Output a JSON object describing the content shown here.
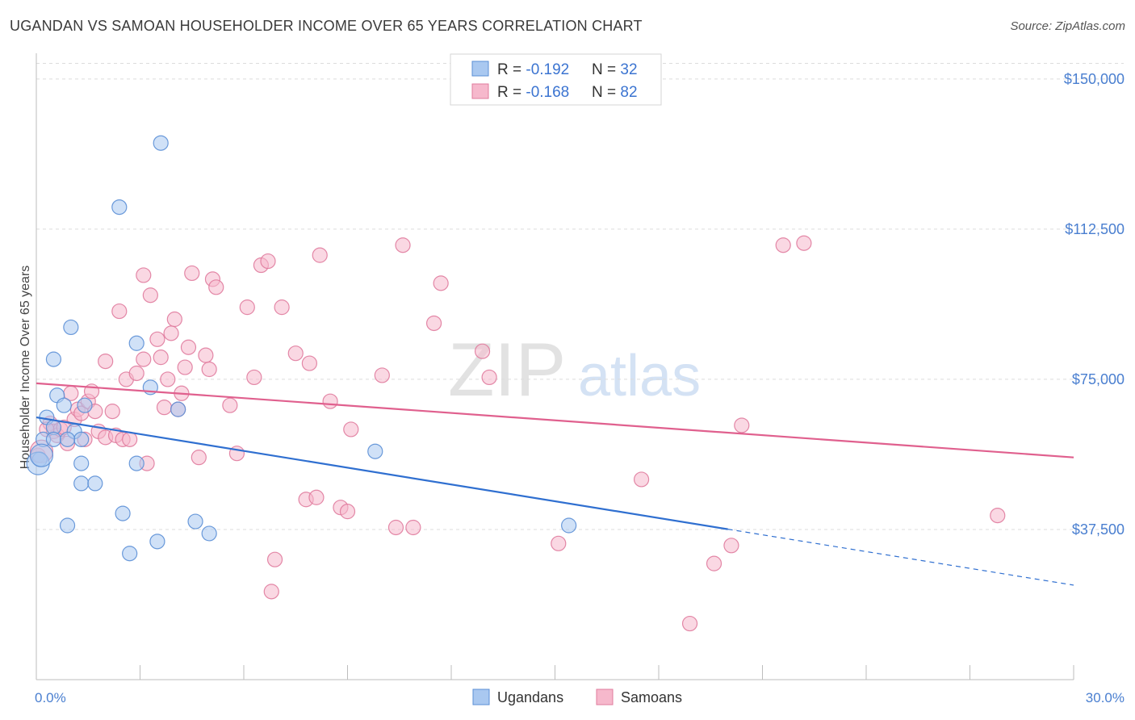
{
  "title": "UGANDAN VS SAMOAN HOUSEHOLDER INCOME OVER 65 YEARS CORRELATION CHART",
  "source": "Source: ZipAtlas.com",
  "watermark": {
    "zip": "ZIP",
    "atlas": "atlas"
  },
  "colors": {
    "ugandan_fill": "#a9c8f0",
    "ugandan_stroke": "#5b8fd6",
    "ugandan_line": "#2f6fd0",
    "samoan_fill": "#f6b8cc",
    "samoan_stroke": "#e07b9d",
    "samoan_line": "#e0608e",
    "axis_label": "#4a7fd0",
    "grid": "#dcdcdc"
  },
  "legend": [
    {
      "r_label": "R = ",
      "r_value": "-0.192",
      "n_label": "N = ",
      "n_value": "32"
    },
    {
      "r_label": "R = ",
      "r_value": "-0.168",
      "n_label": "N = ",
      "n_value": "82"
    }
  ],
  "chart_data": {
    "type": "scatter",
    "title": "UGANDAN VS SAMOAN HOUSEHOLDER INCOME OVER 65 YEARS CORRELATION CHART",
    "xlabel": "",
    "ylabel": "Householder Income Over 65 years",
    "xlim": [
      0,
      30
    ],
    "ylim": [
      0,
      154000
    ],
    "x_tick_labels": [
      "0.0%",
      "30.0%"
    ],
    "y_ticks": [
      37500,
      75000,
      112500,
      150000
    ],
    "y_tick_labels": [
      "$37,500",
      "$75,000",
      "$112,500",
      "$150,000"
    ],
    "legend_position": "top-center",
    "bottom_legend": [
      "Ugandans",
      "Samoans"
    ],
    "series": [
      {
        "name": "Ugandans",
        "r": -0.192,
        "n": 32,
        "trend": {
          "x0": 0,
          "y0": 65500,
          "x_solid_end": 20,
          "x1": 30,
          "y1": 23600
        },
        "points": [
          [
            3.6,
            134000
          ],
          [
            2.4,
            118000
          ],
          [
            1.0,
            88000
          ],
          [
            0.5,
            80000
          ],
          [
            2.9,
            84000
          ],
          [
            0.6,
            71000
          ],
          [
            3.3,
            73000
          ],
          [
            0.8,
            68500
          ],
          [
            1.4,
            68500
          ],
          [
            4.1,
            67500
          ],
          [
            0.3,
            65500
          ],
          [
            0.5,
            63000
          ],
          [
            1.1,
            62000
          ],
          [
            0.2,
            60000
          ],
          [
            0.5,
            60000
          ],
          [
            1.3,
            60000
          ],
          [
            0.9,
            60000
          ],
          [
            0.1,
            55000
          ],
          [
            1.3,
            54000
          ],
          [
            2.9,
            54000
          ],
          [
            1.3,
            49000
          ],
          [
            1.7,
            49000
          ],
          [
            9.8,
            57000
          ],
          [
            2.5,
            41500
          ],
          [
            0.9,
            38500
          ],
          [
            4.6,
            39500
          ],
          [
            5.0,
            36500
          ],
          [
            3.5,
            34500
          ],
          [
            2.7,
            31500
          ],
          [
            15.4,
            38500
          ],
          [
            0.05,
            54000
          ],
          [
            0.15,
            56000
          ]
        ]
      },
      {
        "name": "Samoans",
        "r": -0.168,
        "n": 82,
        "trend": {
          "x0": 0,
          "y0": 74000,
          "x1": 30,
          "y1": 55500
        },
        "points": [
          [
            0.05,
            56000
          ],
          [
            0.4,
            64000
          ],
          [
            0.5,
            62000
          ],
          [
            0.6,
            61000
          ],
          [
            0.7,
            62500
          ],
          [
            0.9,
            59000
          ],
          [
            1.0,
            71500
          ],
          [
            1.1,
            65000
          ],
          [
            1.2,
            67500
          ],
          [
            1.3,
            66500
          ],
          [
            1.4,
            60000
          ],
          [
            1.5,
            69500
          ],
          [
            1.6,
            72000
          ],
          [
            1.7,
            67000
          ],
          [
            1.8,
            62000
          ],
          [
            2.0,
            60500
          ],
          [
            2.0,
            79500
          ],
          [
            2.2,
            67000
          ],
          [
            2.3,
            61000
          ],
          [
            2.4,
            92000
          ],
          [
            2.5,
            60000
          ],
          [
            2.6,
            75000
          ],
          [
            2.7,
            60000
          ],
          [
            2.9,
            76500
          ],
          [
            3.1,
            101000
          ],
          [
            3.1,
            80000
          ],
          [
            3.2,
            54000
          ],
          [
            3.3,
            96000
          ],
          [
            3.5,
            85000
          ],
          [
            3.6,
            80500
          ],
          [
            3.7,
            68000
          ],
          [
            3.8,
            75000
          ],
          [
            3.9,
            86500
          ],
          [
            4.0,
            90000
          ],
          [
            4.1,
            67500
          ],
          [
            4.2,
            71500
          ],
          [
            4.3,
            78000
          ],
          [
            4.4,
            83000
          ],
          [
            4.5,
            101500
          ],
          [
            4.7,
            55500
          ],
          [
            4.9,
            81000
          ],
          [
            5.0,
            77500
          ],
          [
            5.1,
            100000
          ],
          [
            5.2,
            98000
          ],
          [
            5.6,
            68500
          ],
          [
            5.8,
            56500
          ],
          [
            6.1,
            93000
          ],
          [
            6.3,
            75500
          ],
          [
            6.5,
            103500
          ],
          [
            6.7,
            104500
          ],
          [
            6.9,
            30000
          ],
          [
            7.1,
            93000
          ],
          [
            7.5,
            81500
          ],
          [
            7.8,
            45000
          ],
          [
            7.9,
            79000
          ],
          [
            8.1,
            45500
          ],
          [
            8.2,
            106000
          ],
          [
            8.5,
            69500
          ],
          [
            8.8,
            43000
          ],
          [
            9.0,
            42000
          ],
          [
            9.1,
            62500
          ],
          [
            10.0,
            76000
          ],
          [
            10.4,
            38000
          ],
          [
            10.6,
            108500
          ],
          [
            10.9,
            38000
          ],
          [
            11.5,
            89000
          ],
          [
            11.7,
            99000
          ],
          [
            12.9,
            82000
          ],
          [
            13.1,
            75500
          ],
          [
            15.1,
            34000
          ],
          [
            17.5,
            50000
          ],
          [
            18.9,
            14000
          ],
          [
            19.6,
            29000
          ],
          [
            20.1,
            33500
          ],
          [
            20.4,
            63500
          ],
          [
            21.6,
            108500
          ],
          [
            22.2,
            109000
          ],
          [
            27.8,
            41000
          ],
          [
            0.3,
            62500
          ],
          [
            0.8,
            63000
          ],
          [
            6.8,
            22000
          ],
          [
            0.15,
            57000
          ]
        ]
      }
    ]
  }
}
